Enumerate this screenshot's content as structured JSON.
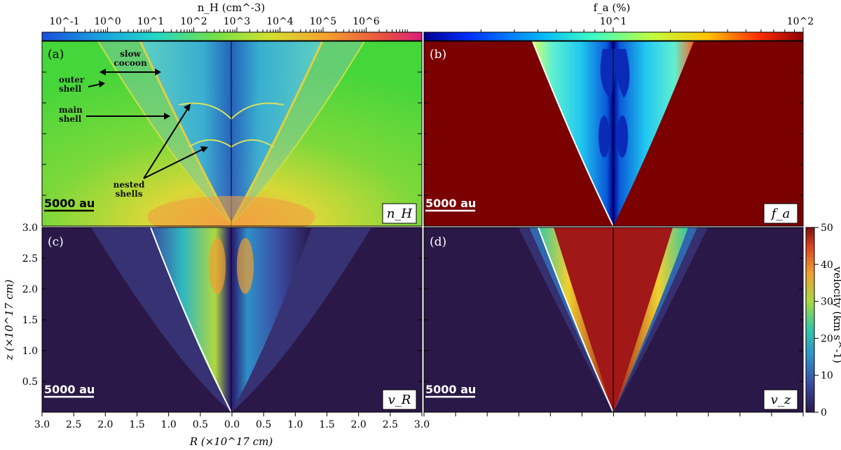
{
  "colorbars": {
    "nh": {
      "label": "n_H (cm^-3)",
      "ticks": [
        "10^-1",
        "10^0",
        "10^1",
        "10^2",
        "10^3",
        "10^4",
        "10^5",
        "10^6"
      ]
    },
    "fa": {
      "label": "f_a (%)",
      "ticks": [
        "10^1",
        "10^2"
      ]
    },
    "velocity": {
      "label": "velocity (km s^-1)",
      "ticks": [
        "0",
        "10",
        "20",
        "30",
        "40",
        "50"
      ]
    }
  },
  "panels": [
    {
      "id": "a",
      "label": "(a)",
      "tag": "n_H",
      "scalebar": "5000 au"
    },
    {
      "id": "b",
      "label": "(b)",
      "tag": "f_a",
      "scalebar": "5000 au"
    },
    {
      "id": "c",
      "label": "(c)",
      "tag": "v_R",
      "scalebar": "5000 au"
    },
    {
      "id": "d",
      "label": "(d)",
      "tag": "v_z",
      "scalebar": "5000 au"
    }
  ],
  "annotations": {
    "slow_cocoon": [
      "slow",
      "cocoon"
    ],
    "outer_shell": [
      "outer",
      "shell"
    ],
    "main_shell": [
      "main",
      "shell"
    ],
    "nested_shells": [
      "nested",
      "shells"
    ]
  },
  "axes": {
    "xlabel": "R (×10^17 cm)",
    "ylabel": "z (×10^17 cm)",
    "xticks": [
      "3.0",
      "2.5",
      "2.0",
      "1.5",
      "1.0",
      "0.5",
      "0.0",
      "0.5",
      "1.0",
      "1.5",
      "2.0",
      "2.5",
      "3.0"
    ],
    "yticks": [
      "3.0",
      "2.5",
      "2.0",
      "1.5",
      "1.0",
      "0.5"
    ]
  },
  "colors": {
    "nh_bg": "#44d63a",
    "fa_bg": "#7b0000",
    "v_bg": "#2a1848"
  }
}
